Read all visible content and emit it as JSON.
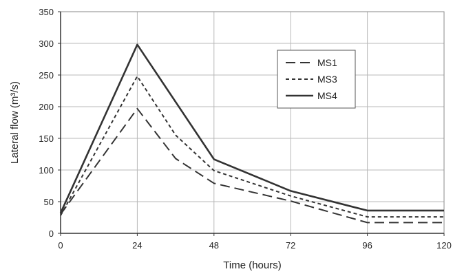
{
  "chart_data": {
    "type": "line",
    "title": "",
    "xlabel": "Time (hours)",
    "ylabel": "Lateral flow (m³/s)",
    "xlim": [
      0,
      120
    ],
    "ylim": [
      0,
      350
    ],
    "x_ticks": [
      0,
      24,
      48,
      72,
      96,
      120
    ],
    "y_ticks": [
      0,
      50,
      100,
      150,
      200,
      250,
      300,
      350
    ],
    "grid": true,
    "legend_position": "top-right",
    "series": [
      {
        "name": "MS1",
        "style": "long-dash",
        "color": "#333333",
        "points": [
          [
            0,
            30
          ],
          [
            24,
            197
          ],
          [
            36,
            118
          ],
          [
            48,
            79
          ],
          [
            72,
            51
          ],
          [
            96,
            17
          ],
          [
            120,
            17
          ]
        ]
      },
      {
        "name": "MS3",
        "style": "short-dash",
        "color": "#333333",
        "points": [
          [
            0,
            28
          ],
          [
            24,
            248
          ],
          [
            36,
            155
          ],
          [
            48,
            99
          ],
          [
            72,
            59
          ],
          [
            96,
            26
          ],
          [
            120,
            26
          ]
        ]
      },
      {
        "name": "MS4",
        "style": "solid",
        "color": "#333333",
        "points": [
          [
            0,
            32
          ],
          [
            24,
            298
          ],
          [
            48,
            117
          ],
          [
            72,
            67
          ],
          [
            96,
            36
          ],
          [
            120,
            36
          ]
        ]
      }
    ]
  }
}
